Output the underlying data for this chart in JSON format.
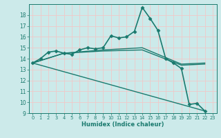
{
  "xlabel": "Humidex (Indice chaleur)",
  "bg_color": "#cceaea",
  "grid_color": "#f0c8c8",
  "line_color": "#1a7a6e",
  "xlim": [
    -0.5,
    23.5
  ],
  "ylim": [
    9,
    19
  ],
  "yticks": [
    9,
    10,
    11,
    12,
    13,
    14,
    15,
    16,
    17,
    18
  ],
  "xticks": [
    0,
    1,
    2,
    3,
    4,
    5,
    6,
    7,
    8,
    9,
    10,
    11,
    12,
    13,
    14,
    15,
    16,
    17,
    18,
    19,
    20,
    21,
    22,
    23
  ],
  "series": [
    {
      "x": [
        0,
        1,
        2,
        3,
        4,
        5,
        6,
        7,
        8,
        9,
        10,
        11,
        12,
        13,
        14,
        15,
        16,
        17,
        18,
        19,
        20,
        21,
        22
      ],
      "y": [
        13.6,
        14.0,
        14.6,
        14.7,
        14.5,
        14.4,
        14.8,
        15.0,
        14.9,
        15.0,
        16.1,
        15.9,
        16.0,
        16.5,
        18.7,
        17.7,
        16.6,
        14.0,
        13.6,
        13.1,
        9.8,
        9.9,
        9.2
      ],
      "marker": "D",
      "markersize": 2.5,
      "linewidth": 1.2
    },
    {
      "x": [
        0,
        4,
        9,
        14,
        19,
        22
      ],
      "y": [
        13.6,
        14.5,
        14.8,
        15.0,
        13.5,
        13.6
      ],
      "marker": null,
      "markersize": 0,
      "linewidth": 1.0
    },
    {
      "x": [
        0,
        4,
        9,
        14,
        19,
        22
      ],
      "y": [
        13.6,
        14.5,
        14.7,
        14.8,
        13.4,
        13.5
      ],
      "marker": null,
      "markersize": 0,
      "linewidth": 1.0
    },
    {
      "x": [
        0,
        22
      ],
      "y": [
        13.6,
        9.2
      ],
      "marker": null,
      "markersize": 0,
      "linewidth": 1.0
    }
  ]
}
